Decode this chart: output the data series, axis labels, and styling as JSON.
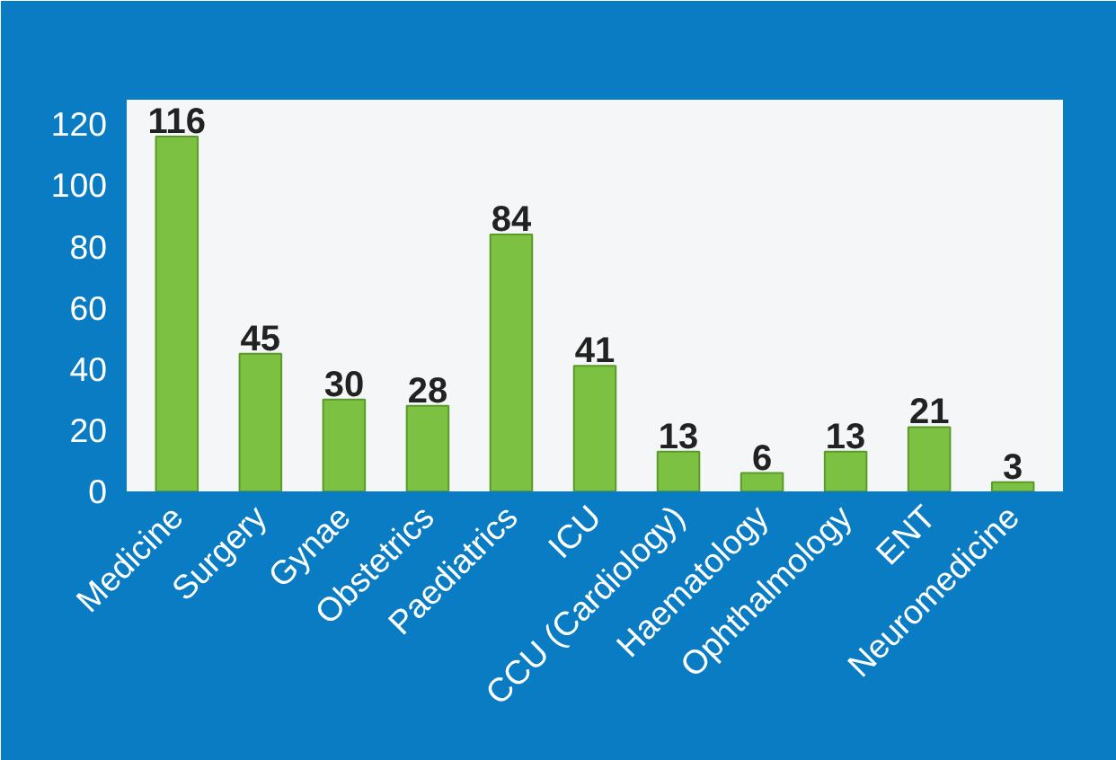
{
  "chart_data": {
    "type": "bar",
    "categories": [
      "Medicine",
      "Surgery",
      "Gynae",
      "Obstetrics",
      "Paediatrics",
      "ICU",
      "CCU (Cardiology)",
      "Haematology",
      "Ophthalmology",
      "ENT",
      "Neuromedicine"
    ],
    "values": [
      116,
      45,
      30,
      28,
      84,
      41,
      13,
      6,
      13,
      21,
      3
    ],
    "color": "#7dc142",
    "ylim": [
      0,
      128
    ],
    "yticks": [
      0,
      20,
      40,
      60,
      80,
      100,
      120
    ],
    "grid": false,
    "data_labels": true
  }
}
